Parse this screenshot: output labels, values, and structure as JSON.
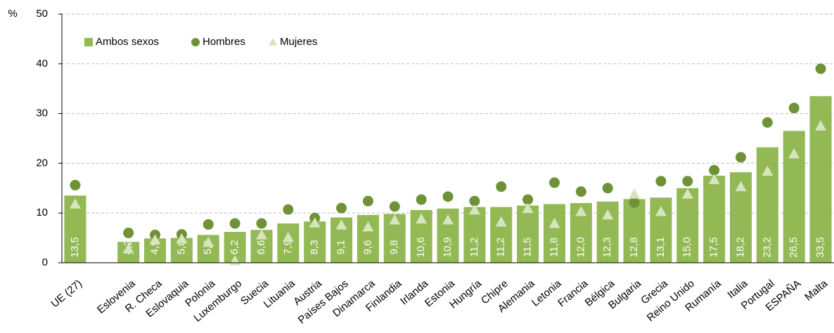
{
  "chart_data": {
    "type": "bar",
    "y_label": "%",
    "categories": [
      "UE (27)",
      null,
      "Eslovenia",
      "R. Checa",
      "Eslovaquia",
      "Polonia",
      "Luxemburgo",
      "Suecia",
      "Lituania",
      "Austria",
      "Países Bajos",
      "Dinamarca",
      "Finlandia",
      "Irlanda",
      "Estonia",
      "Hungría",
      "Chipre",
      "Alemania",
      "Letonia",
      "Francia",
      "Bélgica",
      "Bulgaria",
      "Grecia",
      "Reino Unido",
      "Rumanía",
      "Italia",
      "Portugal",
      "ESPAÑA",
      "Malta"
    ],
    "series": [
      {
        "name": "Ambos sexos",
        "marker": "square",
        "color": "#93b955",
        "values": [
          13.5,
          null,
          4.2,
          4.9,
          5.0,
          5.6,
          6.2,
          6.6,
          7.9,
          8.3,
          9.1,
          9.6,
          9.8,
          10.6,
          10.9,
          11.2,
          11.2,
          11.5,
          11.8,
          12.0,
          12.3,
          12.8,
          13.1,
          15.0,
          17.5,
          18.2,
          23.2,
          26.5,
          33.5
        ],
        "value_labels": [
          "13,5",
          null,
          "4,2",
          "4,9",
          "5,0",
          "5,6",
          "6,2",
          "6,6",
          "7,9",
          "8,3",
          "9,1",
          "9,6",
          "9,8",
          "10,6",
          "10,9",
          "11,2",
          "11,2",
          "11,5",
          "11,8",
          "12,0",
          "12,3",
          "12,8",
          "13,1",
          "15,0",
          "17,5",
          "18,2",
          "23,2",
          "26,5",
          "33,5"
        ]
      },
      {
        "name": "Hombres",
        "marker": "circle",
        "color": "#6f9237",
        "values": [
          15.6,
          null,
          6.0,
          5.6,
          5.7,
          7.7,
          7.9,
          7.9,
          10.7,
          9.0,
          11.0,
          12.4,
          11.3,
          12.7,
          13.3,
          12.4,
          15.3,
          12.7,
          16.1,
          14.3,
          15.0,
          12.1,
          16.4,
          16.4,
          18.6,
          21.2,
          28.2,
          31.1,
          39.0
        ]
      },
      {
        "name": "Mujeres",
        "marker": "triangle",
        "color": "#d7e4bd",
        "values": [
          11.8,
          null,
          2.8,
          4.6,
          4.8,
          4.1,
          0.4,
          5.6,
          5.1,
          8.0,
          7.6,
          7.2,
          8.6,
          8.8,
          8.6,
          10.6,
          8.2,
          10.9,
          7.9,
          10.3,
          9.6,
          13.8,
          10.3,
          13.8,
          16.7,
          15.3,
          18.4,
          21.9,
          27.5
        ]
      }
    ],
    "ylim": [
      0,
      50
    ],
    "yticks": [
      0,
      10,
      20,
      30,
      40,
      50
    ],
    "grid": true,
    "legend": "top-left"
  }
}
